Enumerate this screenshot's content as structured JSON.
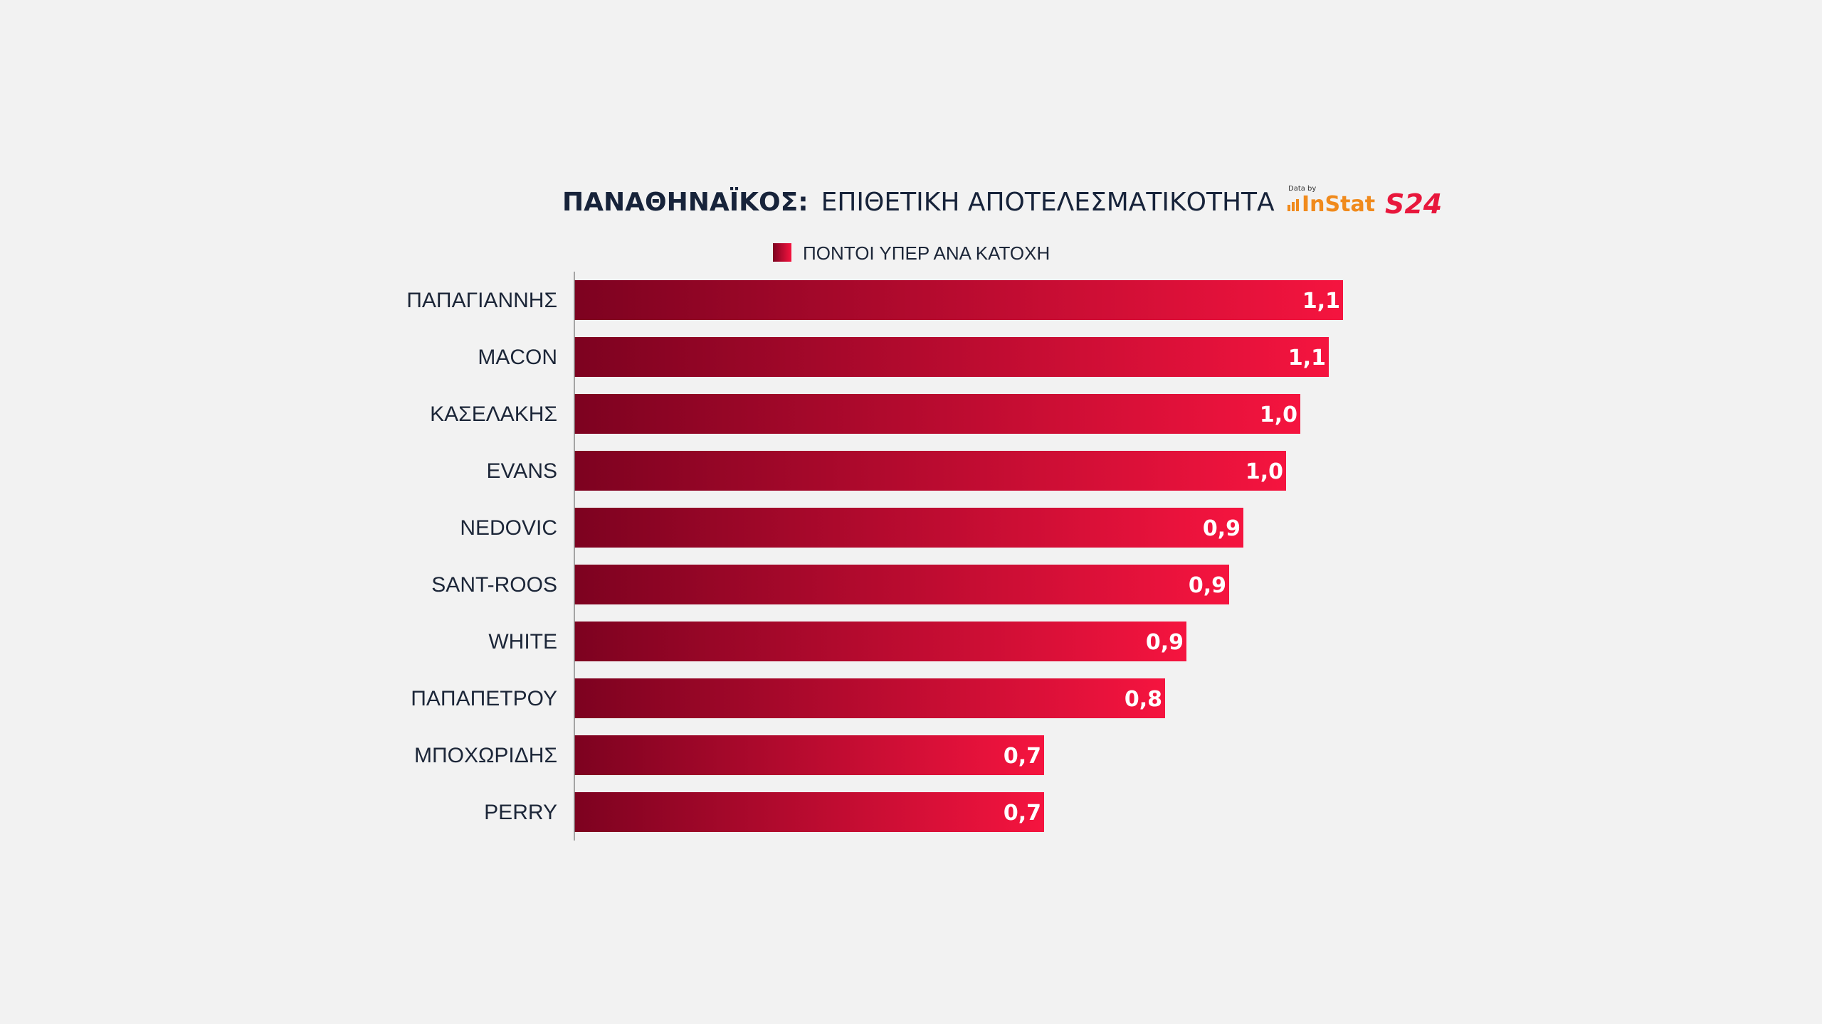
{
  "header": {
    "title_team": "ΠΑΝΑΘΗΝΑΪΚΟΣ:",
    "title_rest": "ΕΠΙΘΕΤΙΚΗ ΑΠΟΤΕΛΕΣΜΑΤΙΚΟΤΗΤΑ",
    "data_by": "Data by",
    "instat_logo": "InStat",
    "s24_logo": "S24"
  },
  "colors": {
    "title": "#17233a",
    "bar_dark": "#7d0220",
    "bar_light": "#f5143f",
    "label_text": "#1c2638",
    "value_text": "#ffffff",
    "axis": "#8a8a8a",
    "instat": "#f08a1c",
    "s24": "#e8173c",
    "background": "#f2f2f2"
  },
  "chart_data": {
    "type": "bar",
    "orientation": "horizontal",
    "title": "ΠΑΝΑΘΗΝΑΪΚΟΣ: ΕΠΙΘΕΤΙΚΗ ΑΠΟΤΕΛΕΣΜΑΤΙΚΟΤΗΤΑ",
    "legend": [
      "ΠΟΝΤΟΙ ΥΠΕΡ ΑΝΑ ΚΑΤΟΧΗ"
    ],
    "legend_position": "top",
    "categories": [
      "ΠΑΠΑΓΙΑΝΝΗΣ",
      "MACON",
      "ΚΑΣΕΛΑΚΗΣ",
      "EVANS",
      "NEDOVIC",
      "SANT-ROOS",
      "WHITE",
      "ΠΑΠΑΠΕΤΡΟΥ",
      "ΜΠΟΧΩΡΙΔΗΣ",
      "PERRY"
    ],
    "values": [
      1.08,
      1.06,
      1.02,
      1.0,
      0.94,
      0.92,
      0.86,
      0.83,
      0.66,
      0.66
    ],
    "value_labels": [
      "1,1",
      "1,1",
      "1,0",
      "1,0",
      "0,9",
      "0,9",
      "0,9",
      "0,8",
      "0,7",
      "0,7"
    ],
    "xlim": [
      0,
      1.1
    ],
    "xlabel": "",
    "ylabel": "",
    "grid": false
  }
}
